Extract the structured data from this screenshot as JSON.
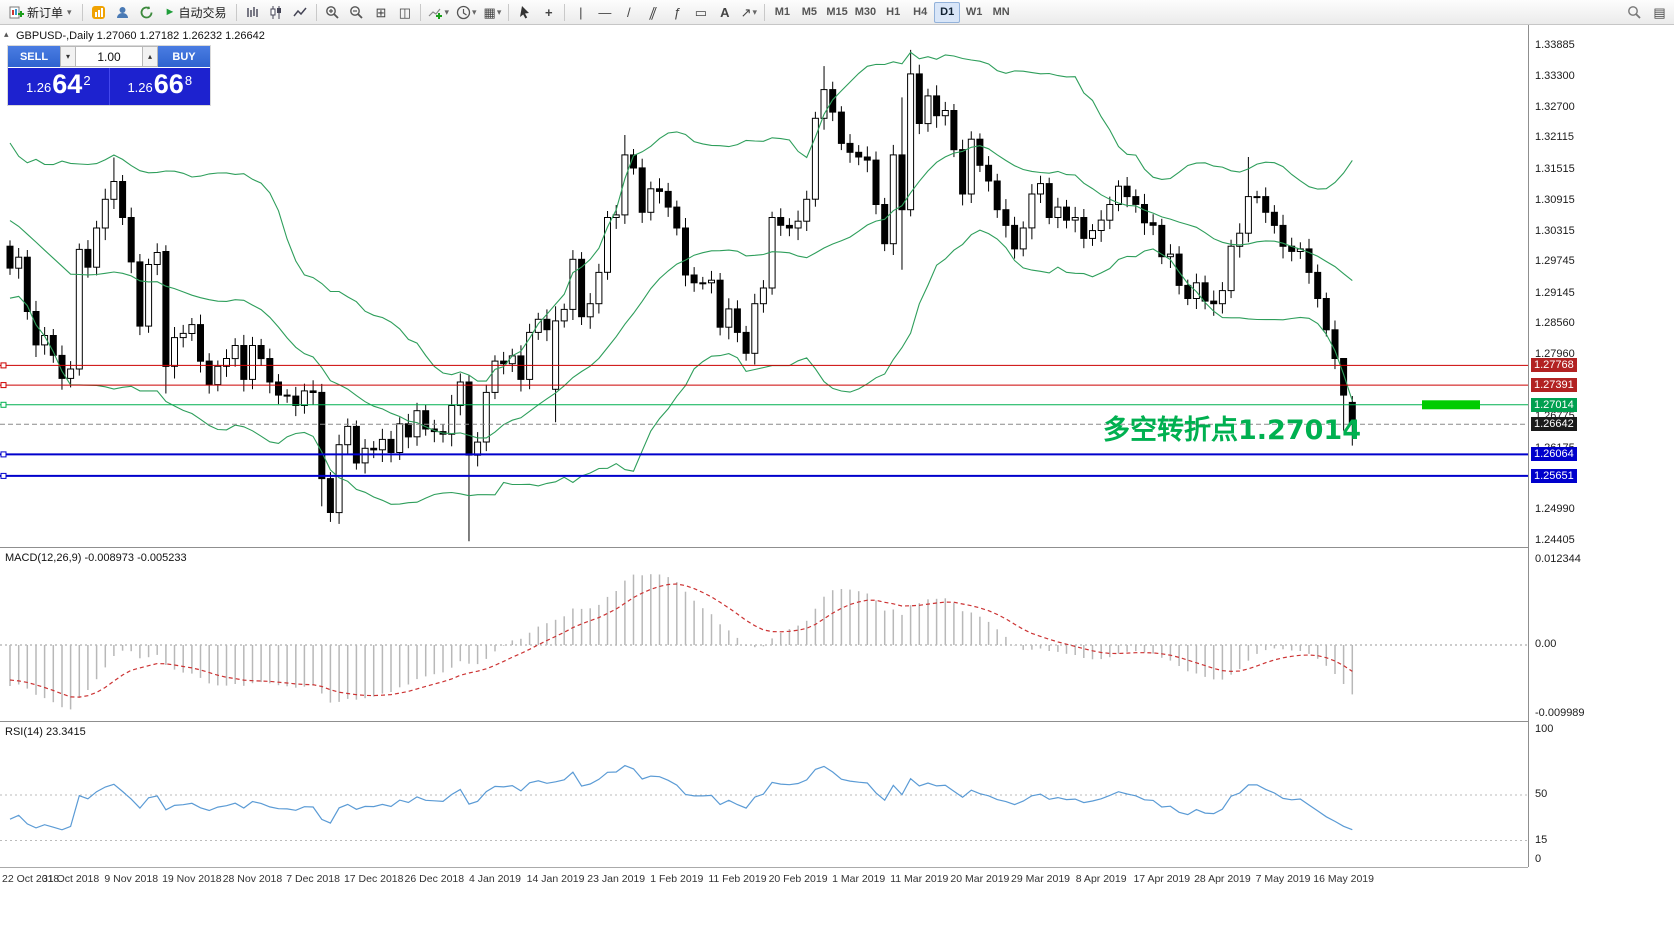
{
  "toolbar": {
    "new_order": "新订单",
    "autotrade": "自动交易",
    "timeframes": [
      "M1",
      "M5",
      "M15",
      "M30",
      "H1",
      "H4",
      "D1",
      "W1",
      "MN"
    ],
    "active_timeframe": "D1"
  },
  "icons": {
    "caret_down": "▾",
    "autotrade_play": "►",
    "tile": "⊞",
    "cascade": "◫",
    "grid_template": "▦",
    "crosshair": "+",
    "vline": "|",
    "hline": "—",
    "trendline": "/",
    "channel": "∥",
    "fibonacci": "ƒ",
    "shapes": "▭",
    "text_tool": "A",
    "arrow_tool": "↗",
    "panels": "▤",
    "collapse": "▴",
    "spin_up": "▴",
    "spin_down": "▾"
  },
  "symbol_header": {
    "text": "GBPUSD-,Daily 1.27060 1.27182 1.26232 1.26642"
  },
  "trade_panel": {
    "sell_label": "SELL",
    "buy_label": "BUY",
    "volume": "1.00",
    "sell_price_prefix": "1.26",
    "sell_price_big": "64",
    "sell_price_sup": "2",
    "buy_price_prefix": "1.26",
    "buy_price_big": "66",
    "buy_price_sup": "8"
  },
  "annotation": {
    "text": "多空转折点1.27014",
    "color": "#00b050"
  },
  "chart_data": {
    "type": "candlestick",
    "title": "GBPUSD-,Daily",
    "timeframe": "Daily",
    "current_price": "1.26642",
    "x_labels": [
      "22 Oct 2018",
      "31 Oct 2018",
      "9 Nov 2018",
      "19 Nov 2018",
      "28 Nov 2018",
      "7 Dec 2018",
      "17 Dec 2018",
      "26 Dec 2018",
      "4 Jan 2019",
      "14 Jan 2019",
      "23 Jan 2019",
      "1 Feb 2019",
      "11 Feb 2019",
      "20 Feb 2019",
      "1 Mar 2019",
      "11 Mar 2019",
      "20 Mar 2019",
      "29 Mar 2019",
      "8 Apr 2019",
      "17 Apr 2019",
      "28 Apr 2019",
      "7 May 2019",
      "16 May 2019"
    ],
    "label_step": 7,
    "warmup_closes": [
      1.323,
      1.3205,
      1.318,
      1.312,
      1.3145,
      1.31,
      1.306,
      1.3075,
      1.301,
      1.298,
      1.3025,
      1.305,
      1.308,
      1.311,
      1.3075,
      1.304,
      1.301,
      1.2985,
      1.295,
      1.292
    ],
    "open_first": 1.3005,
    "closes": [
      1.2963,
      1.2984,
      1.288,
      1.2816,
      1.2834,
      1.2796,
      1.2752,
      1.277,
      1.2999,
      1.2965,
      1.304,
      1.3095,
      1.3129,
      1.306,
      1.2975,
      1.2852,
      1.297,
      1.2993,
      1.2775,
      1.283,
      1.2838,
      1.2855,
      1.2785,
      1.274,
      1.2775,
      1.279,
      1.2815,
      1.275,
      1.2815,
      1.279,
      1.2745,
      1.272,
      1.2718,
      1.27,
      1.2728,
      1.2725,
      1.256,
      1.2495,
      1.2625,
      1.266,
      1.259,
      1.2618,
      1.2615,
      1.2635,
      1.261,
      1.2665,
      1.264,
      1.269,
      1.2655,
      1.265,
      1.2645,
      1.27,
      1.2745,
      1.2605,
      1.263,
      1.2725,
      1.2785,
      1.278,
      1.2795,
      1.275,
      1.284,
      1.2865,
      1.2845,
      1.2862,
      1.2884,
      1.298,
      1.287,
      1.2895,
      1.2955,
      1.306,
      1.3065,
      1.318,
      1.3155,
      1.307,
      1.3115,
      1.311,
      1.308,
      1.304,
      1.295,
      1.2935,
      1.2935,
      1.294,
      1.285,
      1.2885,
      1.284,
      1.28,
      1.2895,
      1.2925,
      1.306,
      1.3045,
      1.304,
      1.3053,
      1.3095,
      1.325,
      1.3305,
      1.3262,
      1.3202,
      1.3185,
      1.3176,
      1.317,
      1.3085,
      1.301,
      1.318,
      1.3075,
      1.3335,
      1.324,
      1.3293,
      1.3255,
      1.3265,
      1.319,
      1.3105,
      1.321,
      1.316,
      1.313,
      1.3075,
      1.3045,
      1.3,
      1.304,
      1.3105,
      1.3125,
      1.306,
      1.308,
      1.3055,
      1.306,
      1.302,
      1.3035,
      1.3055,
      1.3085,
      1.312,
      1.31,
      1.3085,
      1.305,
      1.3045,
      1.2985,
      1.299,
      1.293,
      1.2905,
      1.2935,
      1.29,
      1.2895,
      1.292,
      1.3005,
      1.303,
      1.31,
      1.31,
      1.307,
      1.3045,
      1.3005,
      1.2995,
      1.3,
      1.2955,
      1.2905,
      1.2845,
      1.279,
      1.272,
      1.26642
    ],
    "overrides": {
      "12": {
        "h": 1.3175
      },
      "18": {
        "o": 1.2995,
        "l": 1.2723
      },
      "36": {
        "l": 1.2507
      },
      "37": {
        "l": 1.2477
      },
      "53": {
        "l": 1.244
      },
      "63": {
        "o": 1.2731,
        "h": 1.289,
        "l": 1.2668
      },
      "71": {
        "h": 1.3218
      },
      "94": {
        "h": 1.335
      },
      "103": {
        "h": 1.329,
        "l": 1.296
      },
      "104": {
        "h": 1.3381
      },
      "143": {
        "h": 1.3176
      },
      "154": {
        "h": 1.2785,
        "l": 1.2652
      },
      "155": {
        "o": 1.2706,
        "h": 1.27182,
        "l": 1.26232
      }
    },
    "y_top_value": 1.33885,
    "y_bottom_value": 1.24405,
    "y_axis_labels": [
      "1.33885",
      "1.33300",
      "1.32700",
      "1.32115",
      "1.31515",
      "1.30915",
      "1.30315",
      "1.29745",
      "1.29145",
      "1.28560",
      "1.27960",
      "1.27375",
      "1.26775",
      "1.26175",
      "1.25590",
      "1.24990",
      "1.24405"
    ],
    "price_lines": [
      {
        "value": 1.27768,
        "label": "1.27768",
        "color": "#cc0000",
        "tag_bg": "#b22222",
        "width": 1
      },
      {
        "value": 1.27391,
        "label": "1.27391",
        "color": "#cc0000",
        "tag_bg": "#b22222",
        "width": 1
      },
      {
        "value": 1.27014,
        "label": "1.27014",
        "color": "#00b050",
        "tag_bg": "#00a050",
        "width": 1
      },
      {
        "value": 1.26642,
        "label": "1.26642",
        "color": "#8a8a8a",
        "tag_bg": "#1a1a1a",
        "width": 1,
        "dashed": true
      },
      {
        "value": 1.26064,
        "label": "1.26064",
        "color": "#0000cc",
        "tag_bg": "#0000cc",
        "width": 2
      },
      {
        "value": 1.25651,
        "label": "1.25651",
        "color": "#0000cc",
        "tag_bg": "#0000cc",
        "width": 2
      }
    ],
    "bollinger": {
      "period": 20,
      "deviation": 2,
      "color": "#2e9e5b"
    },
    "highlight_bar": {
      "price": 1.27014,
      "color": "#00cc00"
    },
    "candle_colors": {
      "up_fill": "#ffffff",
      "down_fill": "#000000",
      "border": "#000000",
      "wick": "#000000"
    },
    "indicators": [
      {
        "name": "MACD",
        "label": "MACD(12,26,9) -0.008973 -0.005233",
        "fast": 12,
        "slow": 26,
        "signal": 9,
        "axis_labels": [
          "0.012344",
          "0.00",
          "-0.009989"
        ],
        "axis_values": [
          0.012344,
          0,
          -0.009989
        ],
        "histogram_color": "#b8b8b8",
        "signal_color": "#cc3333"
      },
      {
        "name": "RSI",
        "label": "RSI(14) 23.3415",
        "period": 14,
        "axis_labels": [
          "100",
          "50",
          "15",
          "0"
        ],
        "axis_values": [
          100,
          50,
          15,
          0
        ],
        "levels": [
          50,
          15
        ],
        "line_color": "#5b9bd5"
      }
    ]
  }
}
